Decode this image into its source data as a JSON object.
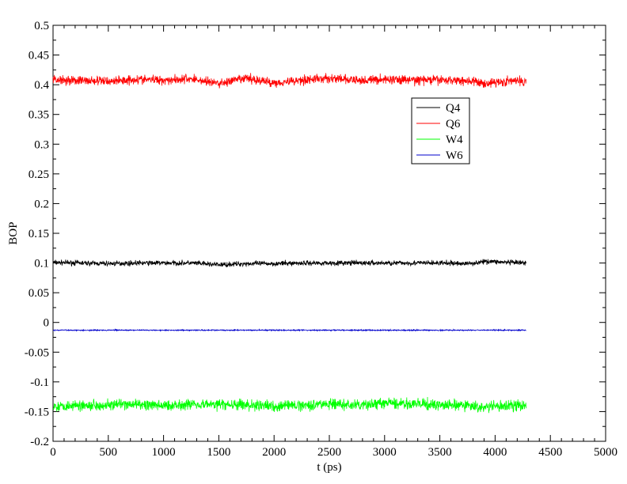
{
  "chart_data": {
    "type": "line",
    "title": "",
    "xlabel": "t (ps)",
    "ylabel": "BOP",
    "xlim": [
      0,
      5000
    ],
    "ylim": [
      -0.2,
      0.5
    ],
    "x_ticks": [
      0,
      500,
      1000,
      1500,
      2000,
      2500,
      3000,
      3500,
      4000,
      4500,
      5000
    ],
    "x_tick_labels": [
      "0",
      "500",
      "1000",
      "1500",
      "2000",
      "2500",
      "3000",
      "3500",
      "4000",
      "4500",
      "5000"
    ],
    "y_ticks": [
      -0.2,
      -0.15,
      -0.1,
      -0.05,
      0,
      0.05,
      0.1,
      0.15,
      0.2,
      0.25,
      0.3,
      0.35,
      0.4,
      0.45,
      0.5
    ],
    "y_tick_labels": [
      "-0.2",
      "-0.15",
      "-0.1",
      "-0.05",
      "0",
      "0.05",
      "0.1",
      "0.15",
      "0.2",
      "0.25",
      "0.3",
      "0.35",
      "0.4",
      "0.45",
      "0.5"
    ],
    "grid": false,
    "legend_position": "upper-right-inside",
    "series": [
      {
        "name": "Q4",
        "color": "#000000",
        "x": [
          0,
          250,
          500,
          750,
          1000,
          1250,
          1500,
          1750,
          2000,
          2250,
          2500,
          2750,
          3000,
          3250,
          3500,
          3750,
          3950,
          4100,
          4280
        ],
        "y": [
          0.101,
          0.1,
          0.099,
          0.1,
          0.1,
          0.1,
          0.097,
          0.099,
          0.099,
          0.1,
          0.1,
          0.1,
          0.1,
          0.1,
          0.1,
          0.099,
          0.103,
          0.101,
          0.1
        ]
      },
      {
        "name": "Q6",
        "color": "#ff0000",
        "x": [
          0,
          250,
          500,
          750,
          1000,
          1250,
          1500,
          1750,
          2000,
          2250,
          2500,
          2750,
          3000,
          3250,
          3500,
          3750,
          3900,
          4100,
          4280
        ],
        "y": [
          0.409,
          0.407,
          0.406,
          0.409,
          0.408,
          0.41,
          0.402,
          0.411,
          0.403,
          0.408,
          0.411,
          0.407,
          0.409,
          0.408,
          0.408,
          0.407,
          0.402,
          0.406,
          0.406
        ]
      },
      {
        "name": "W4",
        "color": "#00ff00",
        "x": [
          0,
          250,
          500,
          750,
          1000,
          1250,
          1500,
          1750,
          2000,
          2250,
          2500,
          2750,
          3000,
          3250,
          3500,
          3750,
          3900,
          4100,
          4280
        ],
        "y": [
          -0.141,
          -0.139,
          -0.139,
          -0.138,
          -0.14,
          -0.137,
          -0.138,
          -0.139,
          -0.141,
          -0.139,
          -0.137,
          -0.14,
          -0.136,
          -0.137,
          -0.139,
          -0.14,
          -0.143,
          -0.14,
          -0.14
        ]
      },
      {
        "name": "W6",
        "color": "#0000cc",
        "x": [
          0,
          250,
          500,
          750,
          1000,
          1250,
          1500,
          1750,
          2000,
          2250,
          2500,
          2750,
          3000,
          3250,
          3500,
          3750,
          4000,
          4280
        ],
        "y": [
          -0.013,
          -0.013,
          -0.013,
          -0.013,
          -0.013,
          -0.013,
          -0.013,
          -0.013,
          -0.013,
          -0.013,
          -0.013,
          -0.013,
          -0.013,
          -0.013,
          -0.013,
          -0.013,
          -0.013,
          -0.013
        ]
      }
    ]
  }
}
